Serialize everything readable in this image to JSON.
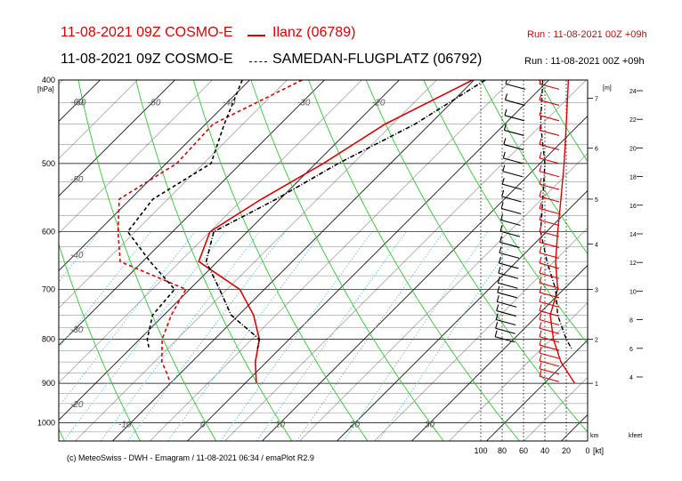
{
  "header": {
    "line1_left": "11-08-2021 09Z COSMO-E",
    "line1_station": "Ilanz (06789)",
    "line1_run": "Run : 11-08-2021 00Z +09h",
    "line2_left": "11-08-2021 09Z COSMO-E",
    "line2_station": "SAMEDAN-FLUGPLATZ (06792)",
    "line2_run": "Run : 11-08-2021 00Z +09h"
  },
  "footer": "(c) MeteoSwiss - DWH - Emagram / 11-08-2021 06:34 / emaPlot R2.9",
  "colors": {
    "ilanz": "#e10000",
    "samedan": "#000000",
    "isotherm": "#000000",
    "dry_adiabat": "#2ecc2e",
    "mixing_ratio": "#6ec6e6"
  },
  "chart_data": [
    {
      "type": "line",
      "title": "",
      "y_axis": {
        "label": "[hPa]",
        "scale": "log",
        "ylim": [
          1050,
          400
        ],
        "ticks": [
          400,
          500,
          600,
          700,
          800,
          900,
          1000
        ]
      },
      "x_axis": {
        "label": "",
        "xlim": [
          -45,
          43
        ],
        "ticks": [
          -10,
          0,
          10,
          20,
          30
        ]
      },
      "isotherm_labels": [
        -60,
        -50,
        -40,
        -30,
        -20,
        -10,
        0,
        10,
        20,
        30
      ],
      "isotherm_labels_left": [
        -60,
        -50,
        -40,
        -30,
        -20
      ],
      "grid": true,
      "series": [
        {
          "name": "Ilanz (06789)",
          "kind": "temperature",
          "points": [
            [
              400,
              -10.2
            ],
            [
              450,
              -16
            ],
            [
              500,
              -19
            ],
            [
              550,
              -22.5
            ],
            [
              600,
              -25
            ],
            [
              650,
              -22.5
            ],
            [
              700,
              -13.3
            ],
            [
              750,
              -8
            ],
            [
              800,
              -4
            ],
            [
              850,
              -1.5
            ],
            [
              900,
              1.5
            ]
          ]
        },
        {
          "name": "Ilanz (06789)",
          "kind": "dewpoint",
          "points": [
            [
              400,
              -33
            ],
            [
              450,
              -39
            ],
            [
              500,
              -38.6
            ],
            [
              550,
              -41.5
            ],
            [
              600,
              -37.3
            ],
            [
              650,
              -33
            ],
            [
              700,
              -20.5
            ],
            [
              750,
              -19
            ],
            [
              800,
              -17
            ],
            [
              850,
              -14
            ],
            [
              880,
              -11.5
            ],
            [
              900,
              -10
            ]
          ]
        },
        {
          "name": "SAMEDAN-FLUGPLATZ (06792)",
          "kind": "temperature",
          "points": [
            [
              400,
              -8.5
            ],
            [
              450,
              -12
            ],
            [
              500,
              -17
            ],
            [
              550,
              -20.5
            ],
            [
              600,
              -24.5
            ],
            [
              650,
              -21.5
            ],
            [
              700,
              -16
            ],
            [
              750,
              -11
            ],
            [
              800,
              -4
            ],
            [
              820,
              -3
            ]
          ]
        },
        {
          "name": "SAMEDAN-FLUGPLATZ (06792)",
          "kind": "dewpoint",
          "points": [
            [
              400,
              -41
            ],
            [
              450,
              -37.5
            ],
            [
              500,
              -34
            ],
            [
              550,
              -37
            ],
            [
              600,
              -36
            ],
            [
              650,
              -29
            ],
            [
              700,
              -22
            ],
            [
              750,
              -21.5
            ],
            [
              800,
              -19
            ],
            [
              820,
              -17.5
            ]
          ]
        }
      ]
    },
    {
      "type": "line",
      "title": "",
      "x_axis": {
        "label": "[kt]",
        "xlim": [
          0,
          100
        ],
        "ticks": [
          100,
          80,
          60,
          40,
          20,
          0
        ]
      },
      "y_axis": {
        "label": "",
        "scale": "log",
        "ylim": [
          1050,
          400
        ]
      },
      "series": [
        {
          "name": "Ilanz (06789)",
          "kind": "wind_speed",
          "points": [
            [
              400,
              18
            ],
            [
              450,
              20
            ],
            [
              500,
              22
            ],
            [
              550,
              25
            ],
            [
              600,
              28
            ],
            [
              650,
              30
            ],
            [
              700,
              28
            ],
            [
              750,
              35
            ],
            [
              800,
              32
            ],
            [
              850,
              25
            ],
            [
              900,
              12
            ]
          ]
        },
        {
          "name": "SAMEDAN-FLUGPLATZ (06792)",
          "kind": "wind_speed",
          "points": [
            [
              400,
              42
            ],
            [
              450,
              44
            ],
            [
              500,
              40
            ],
            [
              550,
              42
            ],
            [
              600,
              44
            ],
            [
              650,
              38
            ],
            [
              700,
              30
            ],
            [
              750,
              28
            ],
            [
              800,
              20
            ],
            [
              820,
              15
            ]
          ]
        }
      ]
    }
  ],
  "height_axis_m": {
    "label": "[m]",
    "ticks": [
      1,
      2,
      3,
      4,
      5,
      6,
      7
    ]
  },
  "height_axis_kfeet": {
    "label": "kfeet",
    "ticks": [
      4,
      6,
      8,
      10,
      12,
      14,
      16,
      18,
      20,
      22,
      24
    ]
  },
  "km_label": "km"
}
